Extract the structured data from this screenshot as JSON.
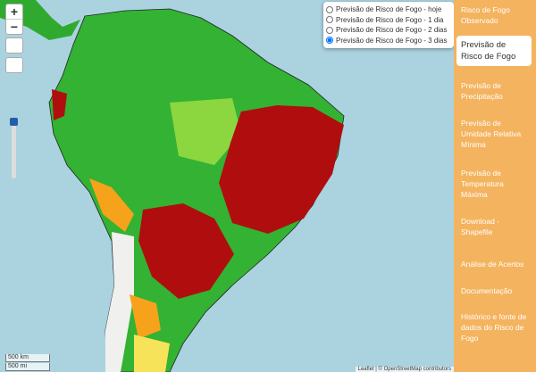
{
  "map": {
    "zoom_in": "+",
    "zoom_out": "−",
    "scale": [
      "500 km",
      "500 mi"
    ],
    "attribution": "Leaflet | © OpenStreetMap contributors"
  },
  "layer_options": [
    {
      "label": "Previsão de Risco de Fogo - hoje",
      "checked": false
    },
    {
      "label": "Previsão de Risco de Fogo - 1 dia",
      "checked": false
    },
    {
      "label": "Previsão de Risco de Fogo - 2 dias",
      "checked": false
    },
    {
      "label": "Previsão de Risco de Fogo - 3 dias",
      "checked": true
    }
  ],
  "menu": {
    "active": 1,
    "items": [
      "Risco de Fogo Observado",
      "Previsão de Risco de Fogo",
      "Previsão de Precipitação",
      "Previsão de Umidade Relativa Mínima",
      "Previsão de Temperatura Máxima",
      "Download - Shapefile",
      "Análise de Acertos",
      "Documentação",
      "Histórico e fonte de dados do Risco de Fogo"
    ]
  }
}
